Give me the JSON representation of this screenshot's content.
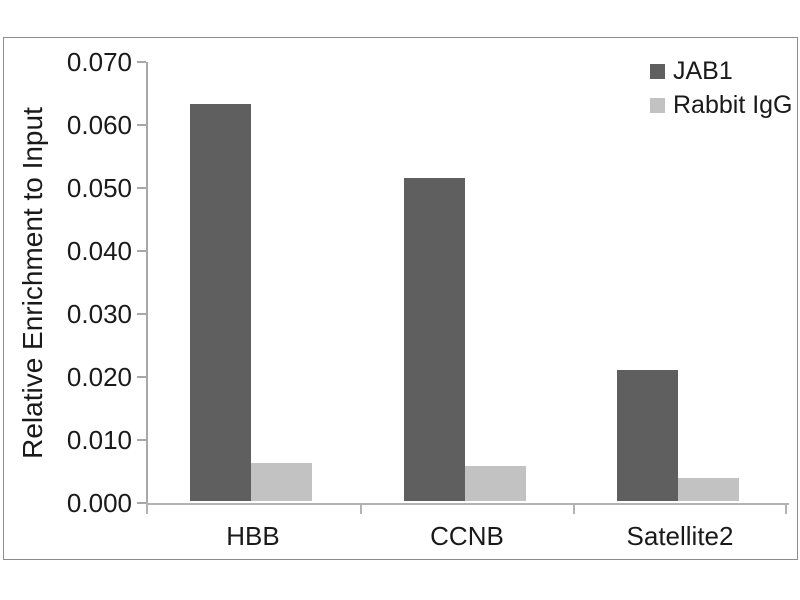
{
  "chart_data": {
    "type": "bar",
    "title": "",
    "xlabel": "",
    "ylabel": "Relative Enrichment to Input",
    "categories": [
      "HBB",
      "CCNB",
      "Satellite2"
    ],
    "series": [
      {
        "name": "JAB1",
        "color": "#5f5f5f",
        "values": [
          0.063,
          0.0513,
          0.0208
        ]
      },
      {
        "name": "Rabbit IgG",
        "color": "#c2c2c2",
        "values": [
          0.006,
          0.0055,
          0.0037
        ]
      }
    ],
    "ylim": [
      0,
      0.07
    ],
    "ytick_step": 0.01,
    "ytick_labels": [
      "0.000",
      "0.010",
      "0.020",
      "0.030",
      "0.040",
      "0.050",
      "0.060",
      "0.070"
    ],
    "grid": false,
    "legend_position": "top-right"
  },
  "colors": {
    "background": "#ffffff",
    "frame_border": "#8c8c8c",
    "axis": "#aaaaaa",
    "text": "#1a1a1a"
  }
}
